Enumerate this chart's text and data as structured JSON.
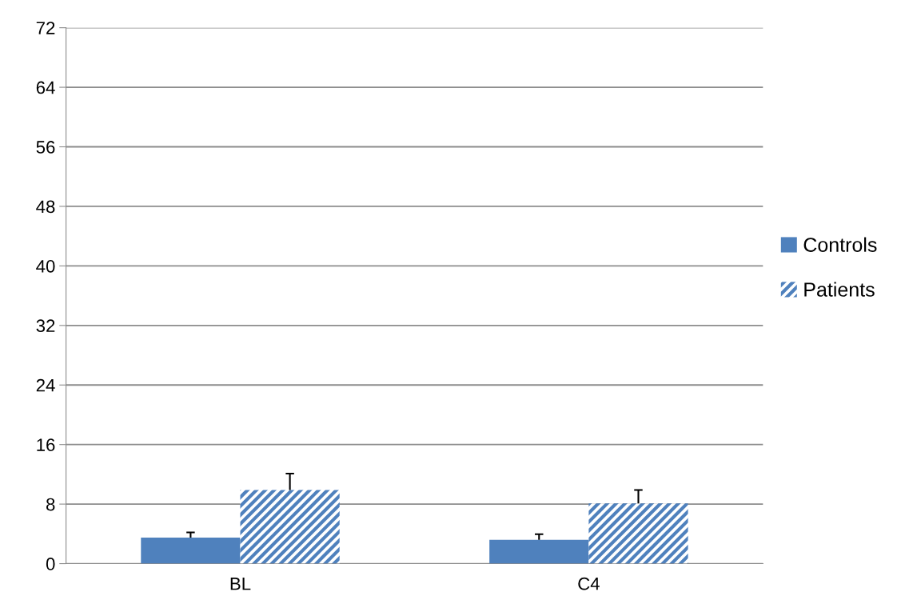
{
  "chart_data": {
    "type": "bar",
    "categories": [
      "BL",
      "C4"
    ],
    "series": [
      {
        "name": "Controls",
        "color": "#4f81bd",
        "values": [
          3.5,
          3.2
        ],
        "errors": [
          [
            3.5,
            4.2
          ],
          [
            3.2,
            3.95
          ]
        ]
      },
      {
        "name": "Patients",
        "color": "#4f81bd",
        "values": [
          9.9,
          8.1
        ],
        "errors": [
          [
            9.9,
            12.1
          ],
          [
            8.1,
            9.9
          ]
        ]
      }
    ],
    "ylim": [
      0,
      72
    ],
    "yticks": [
      0,
      8,
      16,
      24,
      32,
      40,
      48,
      56,
      64,
      72
    ],
    "grid": "y",
    "legend": "right"
  }
}
